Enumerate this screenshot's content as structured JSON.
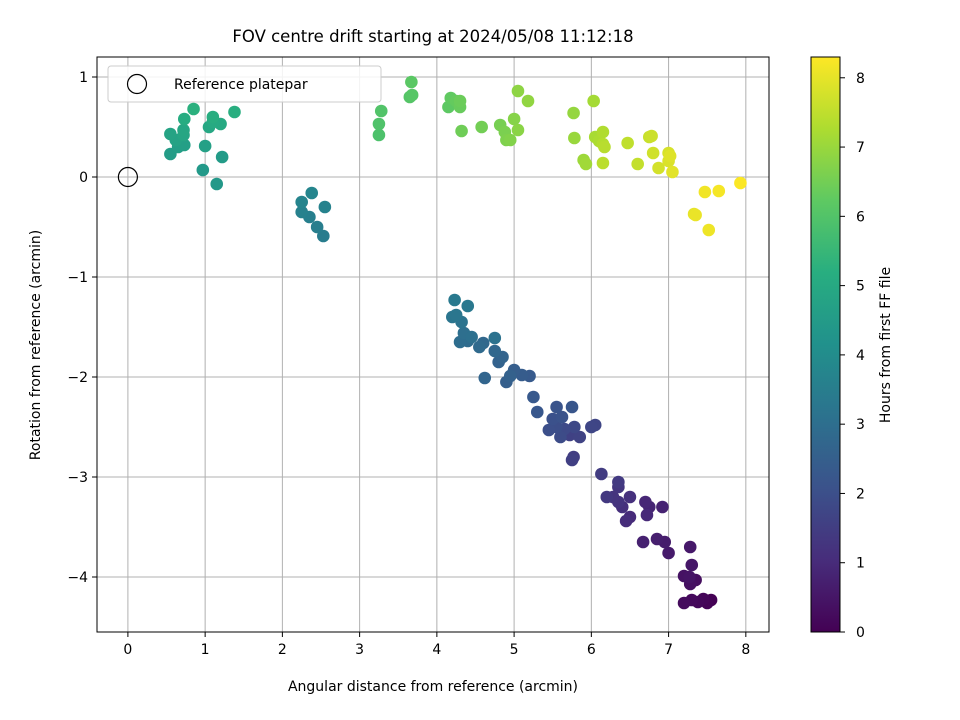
{
  "chart_data": {
    "type": "scatter",
    "title": "FOV centre drift starting at 2024/05/08 11:12:18",
    "xlabel": "Angular distance from reference (arcmin)",
    "ylabel": "Rotation from reference (arcmin)",
    "xlim": [
      -0.4,
      8.3
    ],
    "ylim": [
      -4.55,
      1.2
    ],
    "xticks": [
      0,
      1,
      2,
      3,
      4,
      5,
      6,
      7,
      8
    ],
    "yticks": [
      -4,
      -3,
      -2,
      -1,
      0,
      1
    ],
    "grid": true,
    "legend": {
      "placement": "top-left",
      "entries": [
        "Reference platepar"
      ]
    },
    "reference_point": {
      "x": 0,
      "y": 0
    },
    "colorbar": {
      "label": "Hours from first FF file",
      "colormap": "viridis",
      "range": [
        0,
        8.3
      ],
      "ticks": [
        0,
        1,
        2,
        3,
        4,
        5,
        6,
        7,
        8
      ]
    },
    "points": [
      [
        7.55,
        -4.23,
        0.0
      ],
      [
        7.5,
        -4.26,
        0.05
      ],
      [
        7.45,
        -4.22,
        0.1
      ],
      [
        7.38,
        -4.25,
        0.15
      ],
      [
        7.3,
        -4.23,
        0.2
      ],
      [
        7.2,
        -4.26,
        0.25
      ],
      [
        7.35,
        -4.03,
        0.3
      ],
      [
        7.28,
        -4.07,
        0.35
      ],
      [
        7.2,
        -3.99,
        0.4
      ],
      [
        7.27,
        -4.0,
        0.45
      ],
      [
        7.3,
        -3.88,
        0.5
      ],
      [
        7.28,
        -3.7,
        0.55
      ],
      [
        7.0,
        -3.76,
        0.6
      ],
      [
        6.95,
        -3.65,
        0.65
      ],
      [
        6.85,
        -3.62,
        0.7
      ],
      [
        6.67,
        -3.65,
        0.75
      ],
      [
        6.92,
        -3.3,
        0.8
      ],
      [
        6.75,
        -3.3,
        0.85
      ],
      [
        6.7,
        -3.25,
        0.9
      ],
      [
        6.72,
        -3.38,
        0.95
      ],
      [
        6.5,
        -3.4,
        1.0
      ],
      [
        6.45,
        -3.44,
        1.05
      ],
      [
        6.4,
        -3.3,
        1.1
      ],
      [
        6.5,
        -3.2,
        1.15
      ],
      [
        6.35,
        -3.25,
        1.2
      ],
      [
        6.28,
        -3.2,
        1.25
      ],
      [
        6.35,
        -3.1,
        1.3
      ],
      [
        6.2,
        -3.2,
        1.35
      ],
      [
        6.35,
        -3.05,
        1.4
      ],
      [
        6.13,
        -2.97,
        1.45
      ],
      [
        5.77,
        -2.8,
        1.5
      ],
      [
        5.75,
        -2.83,
        1.55
      ],
      [
        5.72,
        -2.58,
        1.6
      ],
      [
        5.85,
        -2.6,
        1.65
      ],
      [
        6.05,
        -2.48,
        1.7
      ],
      [
        6.0,
        -2.5,
        1.75
      ],
      [
        5.78,
        -2.5,
        1.8
      ],
      [
        5.65,
        -2.52,
        1.85
      ],
      [
        5.6,
        -2.6,
        1.9
      ],
      [
        5.55,
        -2.5,
        1.95
      ],
      [
        5.45,
        -2.53,
        2.0
      ],
      [
        5.5,
        -2.42,
        2.05
      ],
      [
        5.62,
        -2.4,
        2.1
      ],
      [
        5.55,
        -2.3,
        2.15
      ],
      [
        5.75,
        -2.3,
        2.2
      ],
      [
        5.3,
        -2.35,
        2.25
      ],
      [
        5.25,
        -2.2,
        2.3
      ],
      [
        5.2,
        -1.99,
        2.35
      ],
      [
        5.1,
        -1.98,
        2.4
      ],
      [
        5.0,
        -1.93,
        2.45
      ],
      [
        4.9,
        -2.05,
        2.5
      ],
      [
        4.95,
        -1.99,
        2.55
      ],
      [
        4.8,
        -1.85,
        2.6
      ],
      [
        4.85,
        -1.8,
        2.65
      ],
      [
        4.62,
        -2.01,
        2.7
      ],
      [
        4.75,
        -1.74,
        2.75
      ],
      [
        4.6,
        -1.66,
        2.8
      ],
      [
        4.55,
        -1.7,
        2.85
      ],
      [
        4.4,
        -1.64,
        2.9
      ],
      [
        4.3,
        -1.65,
        2.95
      ],
      [
        4.35,
        -1.56,
        3.0
      ],
      [
        4.45,
        -1.6,
        3.05
      ],
      [
        4.75,
        -1.61,
        3.1
      ],
      [
        4.32,
        -1.45,
        3.15
      ],
      [
        4.2,
        -1.4,
        3.2
      ],
      [
        4.25,
        -1.38,
        3.25
      ],
      [
        4.4,
        -1.29,
        3.3
      ],
      [
        4.23,
        -1.23,
        3.35
      ],
      [
        2.53,
        -0.59,
        3.45
      ],
      [
        2.45,
        -0.5,
        3.5
      ],
      [
        2.35,
        -0.4,
        3.55
      ],
      [
        2.25,
        -0.35,
        3.6
      ],
      [
        2.55,
        -0.3,
        3.65
      ],
      [
        2.25,
        -0.25,
        3.7
      ],
      [
        2.38,
        -0.16,
        3.75
      ],
      [
        1.15,
        -0.07,
        4.4
      ],
      [
        0.97,
        0.07,
        4.45
      ],
      [
        1.22,
        0.2,
        4.5
      ],
      [
        0.55,
        0.23,
        4.55
      ],
      [
        0.65,
        0.3,
        4.6
      ],
      [
        0.73,
        0.32,
        4.65
      ],
      [
        1.0,
        0.31,
        4.7
      ],
      [
        0.62,
        0.37,
        4.75
      ],
      [
        0.55,
        0.43,
        4.8
      ],
      [
        0.72,
        0.42,
        4.85
      ],
      [
        0.72,
        0.47,
        4.9
      ],
      [
        1.05,
        0.5,
        4.95
      ],
      [
        1.2,
        0.53,
        5.0
      ],
      [
        1.1,
        0.55,
        5.05
      ],
      [
        0.73,
        0.58,
        5.1
      ],
      [
        1.1,
        0.6,
        5.15
      ],
      [
        1.38,
        0.65,
        5.2
      ],
      [
        0.85,
        0.68,
        5.25
      ],
      [
        3.25,
        0.42,
        5.9
      ],
      [
        3.25,
        0.53,
        5.95
      ],
      [
        3.28,
        0.66,
        6.0
      ],
      [
        3.65,
        0.8,
        6.05
      ],
      [
        3.68,
        0.82,
        6.1
      ],
      [
        3.67,
        0.95,
        6.15
      ],
      [
        4.15,
        0.7,
        6.2
      ],
      [
        4.18,
        0.79,
        6.25
      ],
      [
        4.25,
        0.76,
        6.3
      ],
      [
        4.3,
        0.7,
        6.35
      ],
      [
        4.3,
        0.76,
        6.4
      ],
      [
        4.32,
        0.46,
        6.45
      ],
      [
        4.58,
        0.5,
        6.5
      ],
      [
        4.82,
        0.52,
        6.55
      ],
      [
        4.88,
        0.45,
        6.6
      ],
      [
        4.9,
        0.37,
        6.65
      ],
      [
        4.95,
        0.37,
        6.7
      ],
      [
        5.0,
        0.58,
        6.75
      ],
      [
        5.05,
        0.47,
        6.8
      ],
      [
        5.05,
        0.86,
        6.85
      ],
      [
        5.18,
        0.76,
        6.9
      ],
      [
        5.77,
        0.64,
        6.95
      ],
      [
        5.78,
        0.39,
        7.0
      ],
      [
        5.9,
        0.17,
        7.05
      ],
      [
        5.93,
        0.13,
        7.1
      ],
      [
        6.03,
        0.76,
        7.15
      ],
      [
        6.05,
        0.4,
        7.2
      ],
      [
        6.1,
        0.36,
        7.25
      ],
      [
        6.15,
        0.45,
        7.3
      ],
      [
        6.15,
        0.33,
        7.35
      ],
      [
        6.17,
        0.3,
        7.4
      ],
      [
        6.15,
        0.14,
        7.45
      ],
      [
        6.47,
        0.34,
        7.5
      ],
      [
        6.6,
        0.13,
        7.55
      ],
      [
        6.75,
        0.4,
        7.6
      ],
      [
        6.78,
        0.41,
        7.65
      ],
      [
        6.8,
        0.24,
        7.7
      ],
      [
        6.87,
        0.09,
        7.75
      ],
      [
        7.0,
        0.24,
        7.8
      ],
      [
        7.0,
        0.16,
        7.85
      ],
      [
        7.02,
        0.21,
        7.9
      ],
      [
        7.05,
        0.05,
        7.95
      ],
      [
        7.33,
        -0.37,
        8.0
      ],
      [
        7.35,
        -0.38,
        8.05
      ],
      [
        7.52,
        -0.53,
        8.1
      ],
      [
        7.47,
        -0.15,
        8.15
      ],
      [
        7.65,
        -0.14,
        8.2
      ],
      [
        7.93,
        -0.06,
        8.28
      ]
    ]
  }
}
